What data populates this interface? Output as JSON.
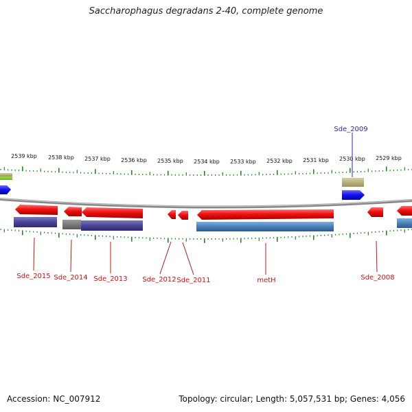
{
  "title": "Saccharophagus degradans 2-40, complete genome",
  "footer": {
    "accession": "Accession: NC_007912",
    "topology": "Topology: circular; Length: 5,057,531 bp; Genes: 4,056"
  },
  "kbp_labels": [
    "2539 kbp",
    "2538 kbp",
    "2537 kbp",
    "2536 kbp",
    "2535 kbp",
    "2534 kbp",
    "2533 kbp",
    "2532 kbp",
    "2531 kbp",
    "2530 kbp",
    "2529 kbp"
  ],
  "gene_labels": [
    {
      "name": "Sde_2009",
      "color": "#2a2aa0"
    },
    {
      "name": "Sde_2015",
      "color": "#cc1111"
    },
    {
      "name": "Sde_2014",
      "color": "#cc1111"
    },
    {
      "name": "Sde_2013",
      "color": "#cc1111"
    },
    {
      "name": "Sde_2012",
      "color": "#cc1111"
    },
    {
      "name": "Sde_2011",
      "color": "#cc1111"
    },
    {
      "name": "metH",
      "color": "#cc1111"
    },
    {
      "name": "Sde_2008",
      "color": "#cc1111"
    }
  ],
  "colors": {
    "forward_gene": "#1515ee",
    "reverse_gene": "#ee1111",
    "purple_band": "#4a4596",
    "blue_band": "#4a7fb8",
    "gray_band": "#7a7a7a",
    "olive_band": "#b8b078",
    "green_band": "#9adf3a",
    "tick": "#228822",
    "backbone": "#888888"
  }
}
